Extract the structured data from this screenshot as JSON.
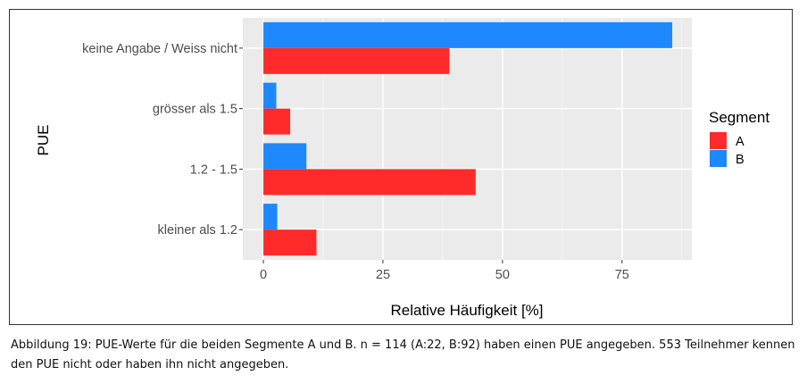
{
  "chart_data": {
    "type": "bar",
    "orientation": "horizontal",
    "categories": [
      "keine Angabe / Weiss nicht",
      "grösser als 1.5",
      "1.2 - 1.5",
      "kleiner als 1.2"
    ],
    "series": [
      {
        "name": "A",
        "color": "#ff2b2b",
        "values": [
          38.9,
          5.6,
          44.4,
          11.1
        ]
      },
      {
        "name": "B",
        "color": "#1e88ff",
        "values": [
          85.5,
          2.7,
          9.0,
          2.9
        ]
      }
    ],
    "xlabel": "Relative Häufigkeit [%]",
    "ylabel": "PUE",
    "xticks": [
      "0",
      "25",
      "50",
      "75"
    ],
    "xtick_values": [
      0,
      25,
      50,
      75
    ],
    "xlim": [
      -4.3,
      89.6
    ],
    "legend": {
      "title": "Segment",
      "position": "right",
      "entries": [
        "A",
        "B"
      ]
    },
    "grid": true
  },
  "caption": "Abbildung 19: PUE-Werte für die beiden Segmente A und B. n = 114 (A:22, B:92) haben einen PUE angegeben. 553 Teilnehmer kennen den PUE nicht oder haben ihn nicht angegeben."
}
